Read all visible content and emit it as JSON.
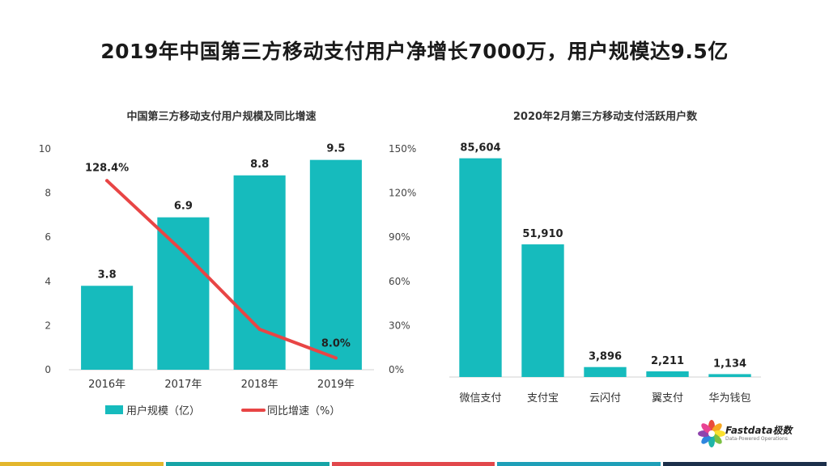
{
  "page": {
    "title": "2019年中国第三方移动支付用户净增长7000万，用户规模达9.5亿"
  },
  "chart_data": [
    {
      "type": "bar",
      "title": "中国第三方移动支付用户规模及同比增速",
      "categories": [
        "2016年",
        "2017年",
        "2018年",
        "2019年"
      ],
      "series": [
        {
          "name": "用户规模（亿）",
          "kind": "bar",
          "axis": "left",
          "values": [
            3.8,
            6.9,
            8.8,
            9.5
          ],
          "labels": [
            "3.8",
            "6.9",
            "8.8",
            "9.5"
          ],
          "color": "#16BBBD"
        },
        {
          "name": "同比增速（%）",
          "kind": "line",
          "axis": "right",
          "values": [
            128.4,
            80.0,
            27.5,
            8.0
          ],
          "labels": [
            "128.4%",
            "",
            "",
            "8.0%"
          ],
          "color": "#E84545"
        }
      ],
      "y_left": {
        "min": 0,
        "max": 10,
        "ticks": [
          "0",
          "2",
          "4",
          "6",
          "8",
          "10"
        ]
      },
      "y_right": {
        "min": 0,
        "max": 150,
        "ticks": [
          "0%",
          "30%",
          "60%",
          "90%",
          "120%",
          "150%"
        ]
      },
      "legend_position": "bottom-left",
      "grid": false
    },
    {
      "type": "bar",
      "title": "2020年2月第三方移动支付活跃用户数",
      "categories": [
        "微信支付",
        "支付宝",
        "云闪付",
        "翼支付",
        "华为钱包"
      ],
      "series": [
        {
          "values": [
            85604,
            51910,
            3896,
            2211,
            1134
          ],
          "labels": [
            "85,604",
            "51,910",
            "3,896",
            "2,211",
            "1,134"
          ],
          "color": "#16BBBD"
        }
      ],
      "y_range": [
        0,
        100000
      ],
      "grid": false
    }
  ],
  "logo": {
    "name": "Fastdata极数",
    "tagline": "Data-Powered Operations",
    "petal_colors": [
      "#E94B3C",
      "#F7A823",
      "#FBE12F",
      "#7BC043",
      "#1FB5A8",
      "#2E86DE",
      "#8E44AD",
      "#E84393"
    ]
  },
  "footer_colors": [
    "#E3B62C",
    "#16A4A6",
    "#E2474B",
    "#1E9FB8",
    "#1C2F4A"
  ]
}
